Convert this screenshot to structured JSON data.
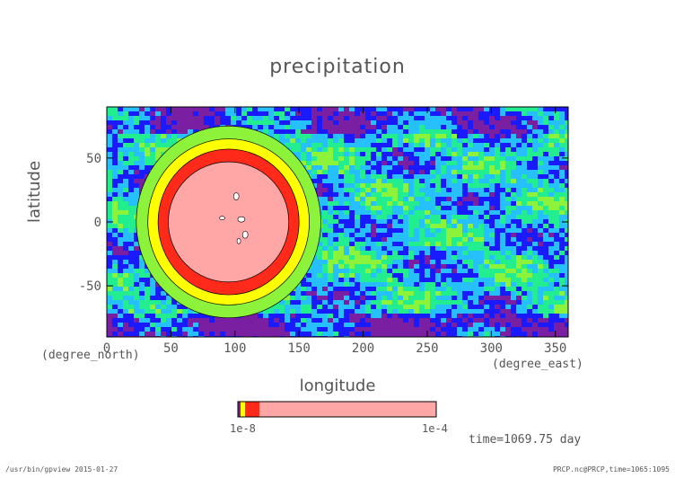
{
  "chart_data": {
    "type": "heatmap",
    "title": "precipitation",
    "xlabel": "longitude",
    "ylabel": "latitude",
    "x_unit": "(degree_east)",
    "y_unit": "(degree_north)",
    "xlim": [
      0,
      360
    ],
    "ylim": [
      -90,
      90
    ],
    "x_ticks": [
      0,
      50,
      100,
      150,
      200,
      250,
      300,
      350
    ],
    "y_ticks": [
      50,
      0,
      -50
    ],
    "colorbar": {
      "min_label": "1e-8",
      "max_label": "1e-4",
      "colors": [
        "#7a1fa2",
        "#1a1aff",
        "#27c0ff",
        "#22ee90",
        "#8cf23a",
        "#ffff00",
        "#ff2a1a",
        "#ffa6a6"
      ]
    },
    "features": {
      "dry_blob_center": {
        "lon": 95,
        "lat": 0
      },
      "band_levels": [
        {
          "level": 7,
          "color": "#ffa6a6",
          "half_width_deg": 47,
          "half_height_deg": 47
        },
        {
          "level": 6,
          "color": "#ff2a1a",
          "half_width_deg": 55,
          "half_height_deg": 57
        },
        {
          "level": 5,
          "color": "#ffff00",
          "half_width_deg": 63,
          "half_height_deg": 65
        },
        {
          "level": 4,
          "color": "#8cf23a",
          "half_width_deg": 72,
          "half_height_deg": 75
        }
      ]
    },
    "grid": false
  },
  "timestamp": "time=1069.75 day",
  "footer": {
    "left": "/usr/bin/gpview  2015-01-27",
    "right": "PRCP.nc@PRCP,time=1065:1095"
  }
}
